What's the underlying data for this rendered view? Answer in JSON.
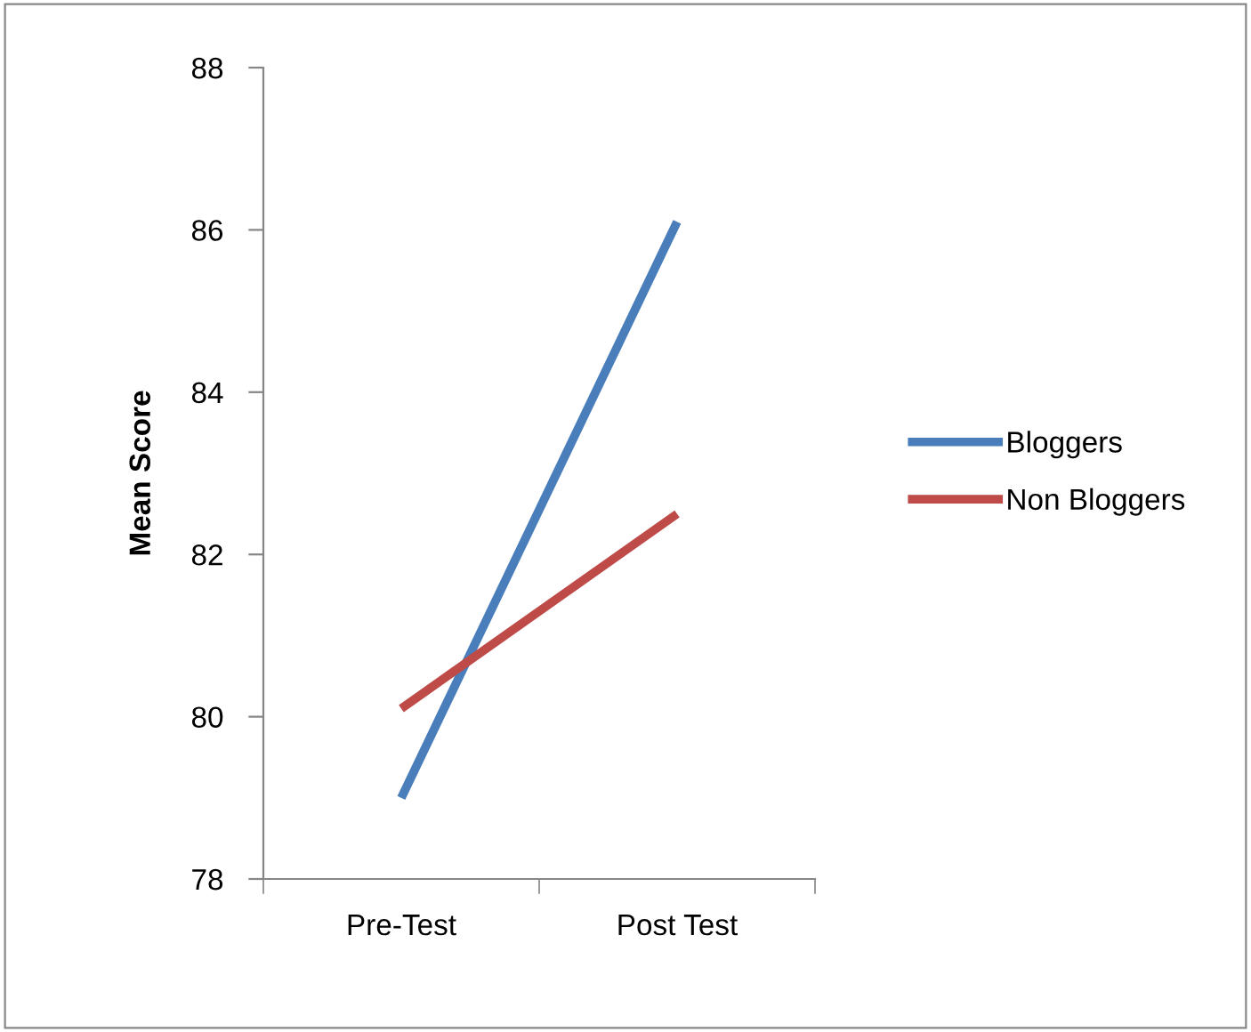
{
  "chart_data": {
    "type": "line",
    "ylabel": "Mean Score",
    "categories": [
      "Pre-Test",
      "Post Test"
    ],
    "series": [
      {
        "name": "Bloggers",
        "color": "#4a7ebb",
        "values": [
          79.0,
          86.1
        ]
      },
      {
        "name": "Non Bloggers",
        "color": "#be4b48",
        "values": [
          80.1,
          82.5
        ]
      }
    ],
    "ylim": [
      78,
      88
    ],
    "yticks": [
      78,
      80,
      82,
      84,
      86,
      88
    ],
    "grid": false,
    "legend": "right",
    "marker": "none",
    "line_style": "solid"
  }
}
